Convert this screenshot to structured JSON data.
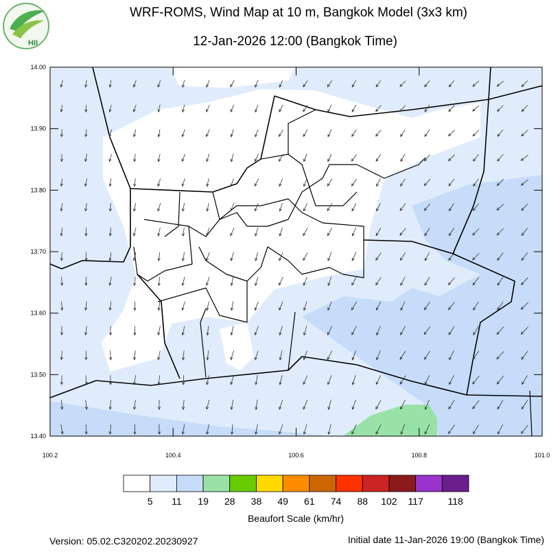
{
  "header": {
    "title": "WRF-ROMS, Wind Map at 10 m, Bangkok Model (3x3 km)",
    "subtitle": "12-Jan-2026 12:00 (Bangkok Time)"
  },
  "logo": {
    "text": "HII"
  },
  "map": {
    "xlim": [
      100.2,
      101.0
    ],
    "ylim": [
      13.4,
      14.0
    ],
    "xticks": [
      100.2,
      100.4,
      100.6,
      100.8,
      {
        "value": 101.0,
        "label": "101.0"
      }
    ],
    "yticks": [
      {
        "value": 14.0,
        "label": "14.00"
      },
      {
        "value": 13.9,
        "label": "13.90"
      },
      {
        "value": 13.8,
        "label": "13.80"
      },
      {
        "value": 13.7,
        "label": "13.70"
      },
      {
        "value": 13.6,
        "label": "13.60"
      },
      {
        "value": 13.5,
        "label": "13.50"
      },
      {
        "value": 13.4,
        "label": "13.40"
      }
    ]
  },
  "legend": {
    "colors": [
      "#ffffff",
      "#e0ecfc",
      "#c6dcf8",
      "#98e2a8",
      "#66cc00",
      "#ffd800",
      "#ff8c00",
      "#cc6600",
      "#ff3300",
      "#cc2424",
      "#8b1a1a",
      "#9933cc",
      "#6a1f8c"
    ],
    "labels": [
      5,
      11,
      19,
      28,
      38,
      49,
      61,
      74,
      88,
      102,
      117,
      118
    ],
    "title": "Beaufort Scale (km/hr)"
  },
  "footer": {
    "version": "Version: 05.02.C320202.20230927",
    "initial": "Initial date 11-Jan-2026 19:00 (Bangkok Time)"
  }
}
